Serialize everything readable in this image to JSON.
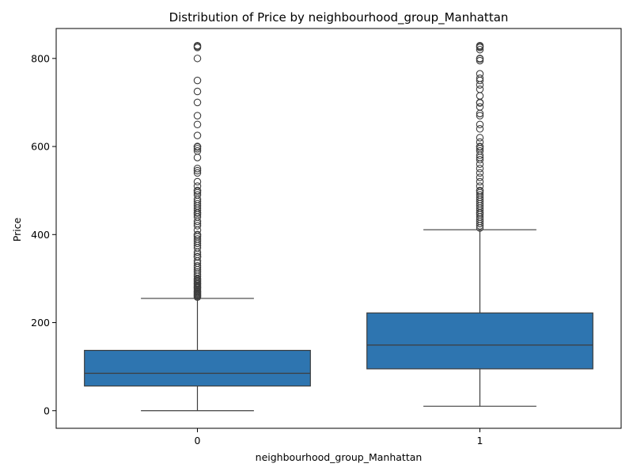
{
  "chart_data": {
    "type": "box",
    "title": "Distribution of Price by neighbourhood_group_Manhattan",
    "xlabel": "neighbourhood_group_Manhattan",
    "ylabel": "Price",
    "categories": [
      "0",
      "1"
    ],
    "yticks": [
      0,
      200,
      400,
      600,
      800
    ],
    "ylim": [
      -40,
      868
    ],
    "grid": false,
    "legend": "none",
    "box_color": "#2e75b0",
    "line_color": "#3d3d3d",
    "boxes": [
      {
        "category": "0",
        "min": 0,
        "q1": 56,
        "median": 85,
        "q3": 137,
        "max": 255,
        "outliers": [
          258,
          260,
          262,
          264,
          266,
          268,
          270,
          272,
          275,
          278,
          280,
          282,
          285,
          288,
          290,
          293,
          295,
          298,
          300,
          305,
          310,
          315,
          320,
          325,
          329,
          335,
          340,
          349,
          350,
          355,
          360,
          370,
          375,
          380,
          385,
          390,
          395,
          399,
          400,
          410,
          420,
          425,
          430,
          440,
          445,
          449,
          450,
          455,
          460,
          465,
          470,
          475,
          480,
          490,
          495,
          499,
          500,
          510,
          520,
          540,
          545,
          550,
          575,
          590,
          595,
          599,
          600,
          625,
          650,
          670,
          700,
          725,
          750,
          800,
          825,
          827,
          829
        ]
      },
      {
        "category": "1",
        "min": 10,
        "q1": 95,
        "median": 149,
        "q3": 222,
        "max": 411,
        "outliers": [
          415,
          420,
          425,
          430,
          435,
          440,
          445,
          449,
          450,
          455,
          460,
          465,
          470,
          475,
          480,
          485,
          490,
          495,
          499,
          500,
          510,
          520,
          530,
          540,
          550,
          560,
          570,
          575,
          580,
          590,
          595,
          599,
          600,
          610,
          620,
          640,
          650,
          670,
          675,
          690,
          699,
          700,
          715,
          730,
          740,
          750,
          755,
          765,
          795,
          799,
          800,
          820,
          825,
          827,
          829
        ]
      }
    ]
  }
}
